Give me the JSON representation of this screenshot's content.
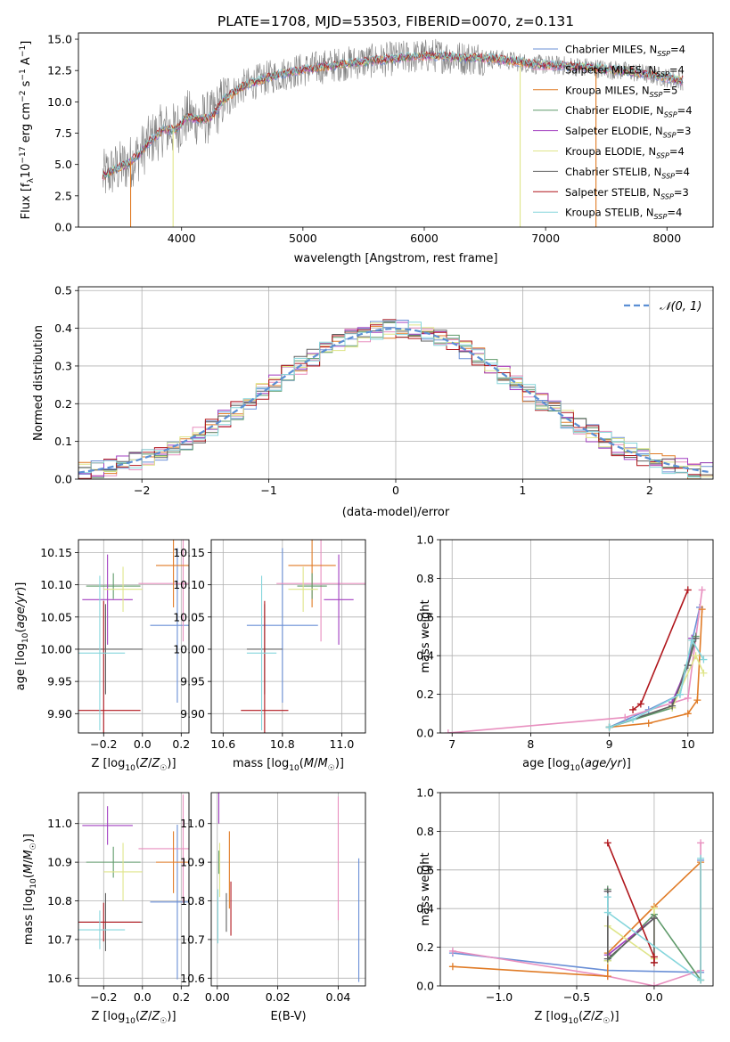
{
  "title": "PLATE=1708, MJD=53503, FIBERID=0070, z=0.131",
  "colors": {
    "Chabrier MILES": "#6a8fd6",
    "Salpeter MILES": "#e88fbf",
    "Kroupa MILES": "#e07b26",
    "Chabrier ELODIE": "#5f9a6a",
    "Salpeter ELODIE": "#a23fc1",
    "Kroupa ELODIE": "#dfe58a",
    "Chabrier STELIB": "#606060",
    "Salpeter STELIB": "#b0161c",
    "Kroupa STELIB": "#86d6dc",
    "normal_curve": "#5b8fd4"
  },
  "chart_data": [
    {
      "id": "spectrum",
      "type": "line",
      "title": "PLATE=1708, MJD=53503, FIBERID=0070, z=0.131",
      "xlabel": "wavelength [Angstrom, rest frame]",
      "ylabel": "Flux [f_λ 10^-17 erg cm^-2 s^-1 A^-1]",
      "xlim": [
        3150,
        8380
      ],
      "ylim": [
        0,
        15.5
      ],
      "xticks": [
        4000,
        5000,
        6000,
        7000,
        8000
      ],
      "yticks": [
        0.0,
        2.5,
        5.0,
        7.5,
        10.0,
        12.5,
        15.0
      ],
      "grid": false,
      "legend_position": "top-right",
      "legend": [
        {
          "name": "Chabrier MILES",
          "label": "Chabrier MILES, N_SSP=4"
        },
        {
          "name": "Salpeter MILES",
          "label": "Salpeter MILES, N_SSP=4"
        },
        {
          "name": "Kroupa MILES",
          "label": "Kroupa MILES, N_SSP=5"
        },
        {
          "name": "Chabrier ELODIE",
          "label": "Chabrier ELODIE, N_SSP=4"
        },
        {
          "name": "Salpeter ELODIE",
          "label": "Salpeter ELODIE, N_SSP=3"
        },
        {
          "name": "Kroupa ELODIE",
          "label": "Kroupa ELODIE, N_SSP=4"
        },
        {
          "name": "Chabrier STELIB",
          "label": "Chabrier STELIB, N_SSP=4"
        },
        {
          "name": "Salpeter STELIB",
          "label": "Salpeter STELIB, N_SSP=3"
        },
        {
          "name": "Kroupa STELIB",
          "label": "Kroupa STELIB, N_SSP=4"
        }
      ],
      "continuum": {
        "x": [
          3350,
          3450,
          3550,
          3650,
          3750,
          3850,
          3950,
          4050,
          4150,
          4250,
          4350,
          4500,
          4700,
          4900,
          5100,
          5300,
          5500,
          5700,
          5900,
          6100,
          6300,
          6500,
          6700,
          6900,
          7100,
          7300,
          7500,
          7700,
          7900,
          8130
        ],
        "y": [
          4.0,
          4.6,
          5.0,
          5.8,
          7.0,
          7.8,
          7.8,
          8.8,
          8.6,
          8.8,
          10.2,
          11.2,
          11.9,
          12.4,
          12.7,
          13.0,
          13.2,
          13.4,
          13.6,
          13.7,
          13.5,
          13.5,
          13.3,
          13.0,
          12.9,
          12.8,
          12.6,
          12.4,
          12.1,
          11.7
        ]
      },
      "drops": [
        {
          "x": 3580,
          "series": "Kroupa MILES"
        },
        {
          "x": 3930,
          "series": "Kroupa ELODIE"
        },
        {
          "x": 6790,
          "series": "Kroupa ELODIE"
        },
        {
          "x": 7415,
          "series": "Kroupa MILES"
        }
      ]
    },
    {
      "id": "residual_histogram",
      "type": "line",
      "xlabel": "(data-model)/error",
      "ylabel": "Normed distribution",
      "xlim": [
        -2.5,
        2.5
      ],
      "ylim": [
        0,
        0.51
      ],
      "xticks": [
        -2,
        -1,
        0,
        1,
        2
      ],
      "yticks": [
        0.0,
        0.1,
        0.2,
        0.3,
        0.4,
        0.5
      ],
      "grid": true,
      "legend_position": "top-right",
      "normal_label": "𝒩(0, 1)",
      "bin_width": 0.1
    },
    {
      "id": "age_vs_Z",
      "type": "scatter",
      "xlabel": "Z [log10(Z/Z☉)]",
      "ylabel": "age [log10(age/yr)]",
      "xlim": [
        -0.33,
        0.24
      ],
      "ylim": [
        9.87,
        10.17
      ],
      "xticks": [
        -0.2,
        0.0,
        0.2
      ],
      "yticks": [
        9.9,
        9.95,
        10.0,
        10.05,
        10.1,
        10.15
      ],
      "grid": true,
      "points": [
        {
          "series": "Chabrier MILES",
          "x": 0.18,
          "y": 10.037,
          "xerr": 0.14,
          "yerr": 0.12
        },
        {
          "series": "Salpeter MILES",
          "x": 0.21,
          "y": 10.102,
          "xerr": 0.23,
          "yerr": 0.09
        },
        {
          "series": "Kroupa MILES",
          "x": 0.16,
          "y": 10.13,
          "xerr": 0.09,
          "yerr": 0.065
        },
        {
          "series": "Chabrier ELODIE",
          "x": -0.15,
          "y": 10.098,
          "xerr": 0.14,
          "yerr": 0.02
        },
        {
          "series": "Salpeter ELODIE",
          "x": -0.18,
          "y": 10.077,
          "xerr": 0.13,
          "yerr": 0.07
        },
        {
          "series": "Kroupa ELODIE",
          "x": -0.1,
          "y": 10.093,
          "xerr": 0.1,
          "yerr": 0.035
        },
        {
          "series": "Chabrier STELIB",
          "x": -0.19,
          "y": 10.0,
          "xerr": 0.19,
          "yerr": 0.07
        },
        {
          "series": "Salpeter STELIB",
          "x": -0.2,
          "y": 9.905,
          "xerr": 0.19,
          "yerr": 0.17
        },
        {
          "series": "Kroupa STELIB",
          "x": -0.22,
          "y": 9.994,
          "xerr": 0.13,
          "yerr": 0.12
        }
      ]
    },
    {
      "id": "age_vs_mass",
      "type": "scatter",
      "xlabel": "mass [log10(M/M☉)]",
      "xlim": [
        10.56,
        11.08
      ],
      "ylim": [
        9.87,
        10.17
      ],
      "xticks": [
        10.6,
        10.8,
        11.0
      ],
      "yticks": [
        9.9,
        9.95,
        10.0,
        10.05,
        10.1,
        10.15
      ],
      "grid": true,
      "points": [
        {
          "series": "Chabrier MILES",
          "x": 10.8,
          "y": 10.037,
          "xerr": 0.12,
          "yerr": 0.12
        },
        {
          "series": "Salpeter MILES",
          "x": 10.93,
          "y": 10.102,
          "xerr": 0.15,
          "yerr": 0.09
        },
        {
          "series": "Kroupa MILES",
          "x": 10.9,
          "y": 10.13,
          "xerr": 0.08,
          "yerr": 0.065
        },
        {
          "series": "Chabrier ELODIE",
          "x": 10.9,
          "y": 10.098,
          "xerr": 0.05,
          "yerr": 0.02
        },
        {
          "series": "Salpeter ELODIE",
          "x": 10.99,
          "y": 10.077,
          "xerr": 0.05,
          "yerr": 0.07
        },
        {
          "series": "Kroupa ELODIE",
          "x": 10.87,
          "y": 10.093,
          "xerr": 0.05,
          "yerr": 0.035
        },
        {
          "series": "Chabrier STELIB",
          "x": 10.74,
          "y": 10.0,
          "xerr": 0.06,
          "yerr": 0.07
        },
        {
          "series": "Salpeter STELIB",
          "x": 10.74,
          "y": 9.905,
          "xerr": 0.08,
          "yerr": 0.17
        },
        {
          "series": "Kroupa STELIB",
          "x": 10.73,
          "y": 9.994,
          "xerr": 0.05,
          "yerr": 0.12
        }
      ]
    },
    {
      "id": "mass_weight_vs_age",
      "type": "line",
      "xlabel": "age [log10(age/yr)]",
      "ylabel": "mass weight",
      "xlim": [
        6.85,
        10.32
      ],
      "ylim": [
        0,
        1.0
      ],
      "xticks": [
        7,
        8,
        9,
        10
      ],
      "yticks": [
        0.0,
        0.2,
        0.4,
        0.6,
        0.8,
        1.0
      ],
      "grid": true,
      "series": [
        {
          "name": "Chabrier MILES",
          "x": [
            9.0,
            9.5,
            9.9,
            10.15
          ],
          "y": [
            0.03,
            0.12,
            0.2,
            0.65
          ]
        },
        {
          "name": "Salpeter MILES",
          "x": [
            6.95,
            9.2,
            10.0,
            10.18
          ],
          "y": [
            0.0,
            0.08,
            0.18,
            0.74
          ]
        },
        {
          "name": "Kroupa MILES",
          "x": [
            9.0,
            9.5,
            10.0,
            10.12,
            10.18
          ],
          "y": [
            0.03,
            0.05,
            0.1,
            0.17,
            0.64
          ]
        },
        {
          "name": "Chabrier ELODIE",
          "x": [
            9.0,
            9.8,
            10.1
          ],
          "y": [
            0.03,
            0.13,
            0.5
          ]
        },
        {
          "name": "Salpeter ELODIE",
          "x": [
            9.8,
            10.0,
            10.05
          ],
          "y": [
            0.16,
            0.35,
            0.49
          ]
        },
        {
          "name": "Kroupa ELODIE",
          "x": [
            9.8,
            10.1,
            10.2
          ],
          "y": [
            0.13,
            0.4,
            0.31
          ]
        },
        {
          "name": "Chabrier STELIB",
          "x": [
            9.0,
            9.8,
            10.0,
            10.1
          ],
          "y": [
            0.03,
            0.14,
            0.35,
            0.49
          ]
        },
        {
          "name": "Salpeter STELIB",
          "x": [
            9.3,
            9.4,
            10.0
          ],
          "y": [
            0.12,
            0.15,
            0.74
          ]
        },
        {
          "name": "Kroupa STELIB",
          "x": [
            9.0,
            9.3,
            9.9,
            10.05,
            10.2
          ],
          "y": [
            0.03,
            0.07,
            0.2,
            0.48,
            0.38
          ]
        }
      ]
    },
    {
      "id": "mass_vs_Z",
      "type": "scatter",
      "xlabel": "Z [log10(Z/Z☉)]",
      "ylabel": "mass [log10(M/M☉)]",
      "xlim": [
        -0.33,
        0.24
      ],
      "ylim": [
        10.58,
        11.08
      ],
      "xticks": [
        -0.2,
        0.0,
        0.2
      ],
      "yticks": [
        10.6,
        10.7,
        10.8,
        10.9,
        11.0
      ],
      "grid": true,
      "points": [
        {
          "series": "Chabrier MILES",
          "x": 0.18,
          "y": 10.797,
          "xerr": 0.14,
          "yerr": 0.2
        },
        {
          "series": "Salpeter MILES",
          "x": 0.21,
          "y": 10.935,
          "xerr": 0.23,
          "yerr": 0.14
        },
        {
          "series": "Kroupa MILES",
          "x": 0.16,
          "y": 10.9,
          "xerr": 0.09,
          "yerr": 0.08
        },
        {
          "series": "Chabrier ELODIE",
          "x": -0.15,
          "y": 10.9,
          "xerr": 0.14,
          "yerr": 0.04
        },
        {
          "series": "Salpeter ELODIE",
          "x": -0.18,
          "y": 10.995,
          "xerr": 0.13,
          "yerr": 0.05
        },
        {
          "series": "Kroupa ELODIE",
          "x": -0.1,
          "y": 10.875,
          "xerr": 0.1,
          "yerr": 0.075
        },
        {
          "series": "Chabrier STELIB",
          "x": -0.19,
          "y": 10.745,
          "xerr": 0.19,
          "yerr": 0.075
        },
        {
          "series": "Salpeter STELIB",
          "x": -0.2,
          "y": 10.745,
          "xerr": 0.19,
          "yerr": 0.05
        },
        {
          "series": "Kroupa STELIB",
          "x": -0.22,
          "y": 10.725,
          "xerr": 0.13,
          "yerr": 0.05
        }
      ]
    },
    {
      "id": "mass_vs_EBV",
      "type": "scatter",
      "xlabel": "E(B-V)",
      "xlim": [
        -0.002,
        0.049
      ],
      "ylim": [
        10.58,
        11.08
      ],
      "xticks": [
        0.0,
        0.02,
        0.04
      ],
      "yticks": [
        10.6,
        10.7,
        10.8,
        10.9,
        11.0
      ],
      "grid": true,
      "points": [
        {
          "series": "Chabrier MILES",
          "x": 0.0468,
          "y": 10.75,
          "xerr": 0.0,
          "yerr": 0.16
        },
        {
          "series": "Salpeter MILES",
          "x": 0.04,
          "y": 10.91,
          "xerr": 0.0,
          "yerr": 0.16
        },
        {
          "series": "Kroupa MILES",
          "x": 0.004,
          "y": 10.88,
          "xerr": 0.0,
          "yerr": 0.1
        },
        {
          "series": "Chabrier ELODIE",
          "x": 0.0005,
          "y": 10.9,
          "xerr": 0.0,
          "yerr": 0.03
        },
        {
          "series": "Salpeter ELODIE",
          "x": 0.0005,
          "y": 11.07,
          "xerr": 0.0,
          "yerr": 0.07
        },
        {
          "series": "Kroupa ELODIE",
          "x": 0.0008,
          "y": 10.88,
          "xerr": 0.0,
          "yerr": 0.07
        },
        {
          "series": "Chabrier STELIB",
          "x": 0.003,
          "y": 10.77,
          "xerr": 0.0,
          "yerr": 0.05
        },
        {
          "series": "Salpeter STELIB",
          "x": 0.0045,
          "y": 10.78,
          "xerr": 0.0,
          "yerr": 0.07
        },
        {
          "series": "Kroupa STELIB",
          "x": 0.0002,
          "y": 10.76,
          "xerr": 0.0,
          "yerr": 0.07
        }
      ]
    },
    {
      "id": "mass_weight_vs_Z",
      "type": "line",
      "xlabel": "Z [log10(Z/Z☉)]",
      "ylabel": "mass weight",
      "xlim": [
        -1.38,
        0.38
      ],
      "ylim": [
        0,
        1.0
      ],
      "xticks": [
        -1.0,
        -0.5,
        0.0
      ],
      "yticks": [
        0.0,
        0.2,
        0.4,
        0.6,
        0.8,
        1.0
      ],
      "grid": true,
      "series": [
        {
          "name": "Chabrier MILES",
          "x": [
            -1.3,
            -0.3,
            0.3,
            0.3
          ],
          "y": [
            0.17,
            0.08,
            0.07,
            0.65
          ]
        },
        {
          "name": "Salpeter MILES",
          "x": [
            -1.3,
            -0.3,
            0.0,
            0.3,
            0.3
          ],
          "y": [
            0.18,
            0.05,
            0.0,
            0.08,
            0.74
          ]
        },
        {
          "name": "Kroupa MILES",
          "x": [
            -1.3,
            -0.3,
            -0.3,
            0.0,
            0.3,
            0.3
          ],
          "y": [
            0.1,
            0.05,
            0.17,
            0.41,
            0.64,
            0.03
          ]
        },
        {
          "name": "Chabrier ELODIE",
          "x": [
            -0.3,
            -0.3,
            0.0,
            0.3
          ],
          "y": [
            0.5,
            0.13,
            0.37,
            0.03
          ]
        },
        {
          "name": "Salpeter ELODIE",
          "x": [
            -0.3,
            -0.3,
            0.0
          ],
          "y": [
            0.49,
            0.16,
            0.35
          ]
        },
        {
          "name": "Kroupa ELODIE",
          "x": [
            -0.3,
            -0.3,
            0.0,
            0.0
          ],
          "y": [
            0.13,
            0.31,
            0.14,
            0.4
          ]
        },
        {
          "name": "Chabrier STELIB",
          "x": [
            -0.3,
            -0.3,
            0.0,
            0.0
          ],
          "y": [
            0.49,
            0.14,
            0.35,
            0.12
          ]
        },
        {
          "name": "Salpeter STELIB",
          "x": [
            -0.3,
            0.0,
            0.0
          ],
          "y": [
            0.74,
            0.15,
            0.12
          ]
        },
        {
          "name": "Kroupa STELIB",
          "x": [
            -0.3,
            -0.3,
            0.3,
            0.3
          ],
          "y": [
            0.46,
            0.38,
            0.03,
            0.66
          ]
        }
      ]
    }
  ]
}
